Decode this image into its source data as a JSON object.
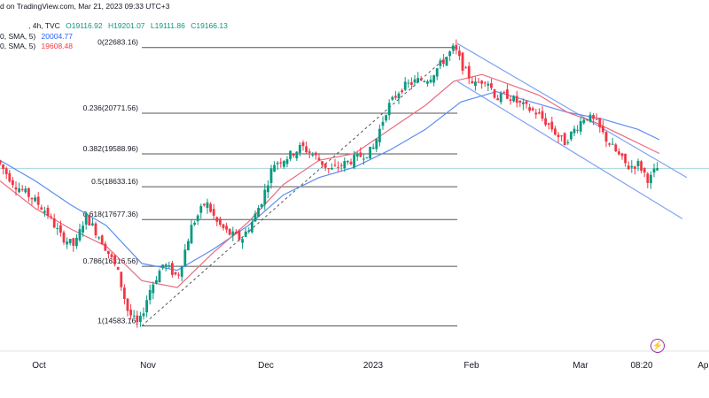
{
  "header": {
    "line1_prefix": "d on TradingView.com, Mar 21, 2023 09:33 UTC+3",
    "interval": ", 4h, TVC",
    "open": "O19116.92",
    "high": "H19201.07",
    "low": "L19111.86",
    "close": "C19166.13",
    "sma1_label": "0, SMA, 5)",
    "sma1_value": "20004.77",
    "sma2_label": "0, SMA, 5)",
    "sma2_value": "19608.48"
  },
  "colors": {
    "up": "#089981",
    "down": "#f23645",
    "sma_slow": "#5b8def",
    "sma_fast": "#ec6b7e",
    "channel": "#7fa4f2",
    "fib": "#555555",
    "last_price_line": "#a9d6d8"
  },
  "icons": {
    "bolt": "lightning-icon"
  },
  "chart_data": {
    "type": "candlestick",
    "ylim": [
      13900,
      23500
    ],
    "x_ticks": [
      "Oct",
      "Nov",
      "Dec",
      "2023",
      "Feb",
      "Mar",
      "08:20",
      "Apr"
    ],
    "fib_levels": [
      {
        "label": "0(22683.16)",
        "value": 22683.16
      },
      {
        "label": "0.236(20771.56)",
        "value": 20771.56
      },
      {
        "label": "0.382(19588.96)",
        "value": 19588.96
      },
      {
        "label": "0.5(18633.16)",
        "value": 18633.16
      },
      {
        "label": "0.618(17677.36)",
        "value": 17677.36
      },
      {
        "label": "0.786(16316.56)",
        "value": 16316.56
      },
      {
        "label": "1(14583.16)",
        "value": 14583.16
      }
    ],
    "last_price": 19166.13,
    "price_path": [
      [
        0,
        19400
      ],
      [
        0.025,
        18700
      ],
      [
        0.05,
        18300
      ],
      [
        0.07,
        17900
      ],
      [
        0.09,
        17200
      ],
      [
        0.11,
        16900
      ],
      [
        0.125,
        17800
      ],
      [
        0.15,
        17000
      ],
      [
        0.17,
        16200
      ],
      [
        0.185,
        15000
      ],
      [
        0.2,
        14583
      ],
      [
        0.215,
        15600
      ],
      [
        0.235,
        16400
      ],
      [
        0.255,
        16000
      ],
      [
        0.275,
        17500
      ],
      [
        0.295,
        18200
      ],
      [
        0.31,
        17600
      ],
      [
        0.325,
        17300
      ],
      [
        0.345,
        17100
      ],
      [
        0.36,
        17600
      ],
      [
        0.375,
        18300
      ],
      [
        0.39,
        19300
      ],
      [
        0.41,
        19500
      ],
      [
        0.43,
        19800
      ],
      [
        0.45,
        19500
      ],
      [
        0.47,
        19100
      ],
      [
        0.49,
        19300
      ],
      [
        0.51,
        19500
      ],
      [
        0.53,
        19700
      ],
      [
        0.55,
        20900
      ],
      [
        0.57,
        21500
      ],
      [
        0.59,
        21700
      ],
      [
        0.61,
        21800
      ],
      [
        0.63,
        22300
      ],
      [
        0.645,
        22683
      ],
      [
        0.66,
        22000
      ],
      [
        0.675,
        21600
      ],
      [
        0.69,
        21800
      ],
      [
        0.705,
        21200
      ],
      [
        0.72,
        21300
      ],
      [
        0.74,
        21000
      ],
      [
        0.76,
        20800
      ],
      [
        0.78,
        20400
      ],
      [
        0.8,
        19900
      ],
      [
        0.815,
        20300
      ],
      [
        0.83,
        20700
      ],
      [
        0.845,
        20500
      ],
      [
        0.86,
        20000
      ],
      [
        0.875,
        19600
      ],
      [
        0.89,
        19200
      ],
      [
        0.905,
        19300
      ],
      [
        0.92,
        18800
      ],
      [
        0.93,
        19170
      ]
    ],
    "sma_fast_path": [
      [
        0,
        18800
      ],
      [
        0.05,
        18000
      ],
      [
        0.1,
        17400
      ],
      [
        0.15,
        16900
      ],
      [
        0.2,
        15900
      ],
      [
        0.25,
        15700
      ],
      [
        0.3,
        16700
      ],
      [
        0.35,
        17600
      ],
      [
        0.4,
        18700
      ],
      [
        0.45,
        19400
      ],
      [
        0.5,
        19600
      ],
      [
        0.55,
        20300
      ],
      [
        0.6,
        21000
      ],
      [
        0.64,
        21700
      ],
      [
        0.68,
        21900
      ],
      [
        0.72,
        21600
      ],
      [
        0.76,
        21300
      ],
      [
        0.8,
        20800
      ],
      [
        0.84,
        20500
      ],
      [
        0.88,
        20100
      ],
      [
        0.93,
        19600
      ]
    ],
    "sma_slow_path": [
      [
        0,
        19400
      ],
      [
        0.05,
        18800
      ],
      [
        0.1,
        18100
      ],
      [
        0.15,
        17500
      ],
      [
        0.2,
        16400
      ],
      [
        0.25,
        16200
      ],
      [
        0.3,
        16800
      ],
      [
        0.35,
        17500
      ],
      [
        0.4,
        18400
      ],
      [
        0.45,
        18900
      ],
      [
        0.5,
        19200
      ],
      [
        0.55,
        19700
      ],
      [
        0.6,
        20300
      ],
      [
        0.65,
        21100
      ],
      [
        0.7,
        21400
      ],
      [
        0.75,
        21100
      ],
      [
        0.8,
        20800
      ],
      [
        0.85,
        20600
      ],
      [
        0.9,
        20300
      ],
      [
        0.93,
        20000
      ]
    ]
  }
}
